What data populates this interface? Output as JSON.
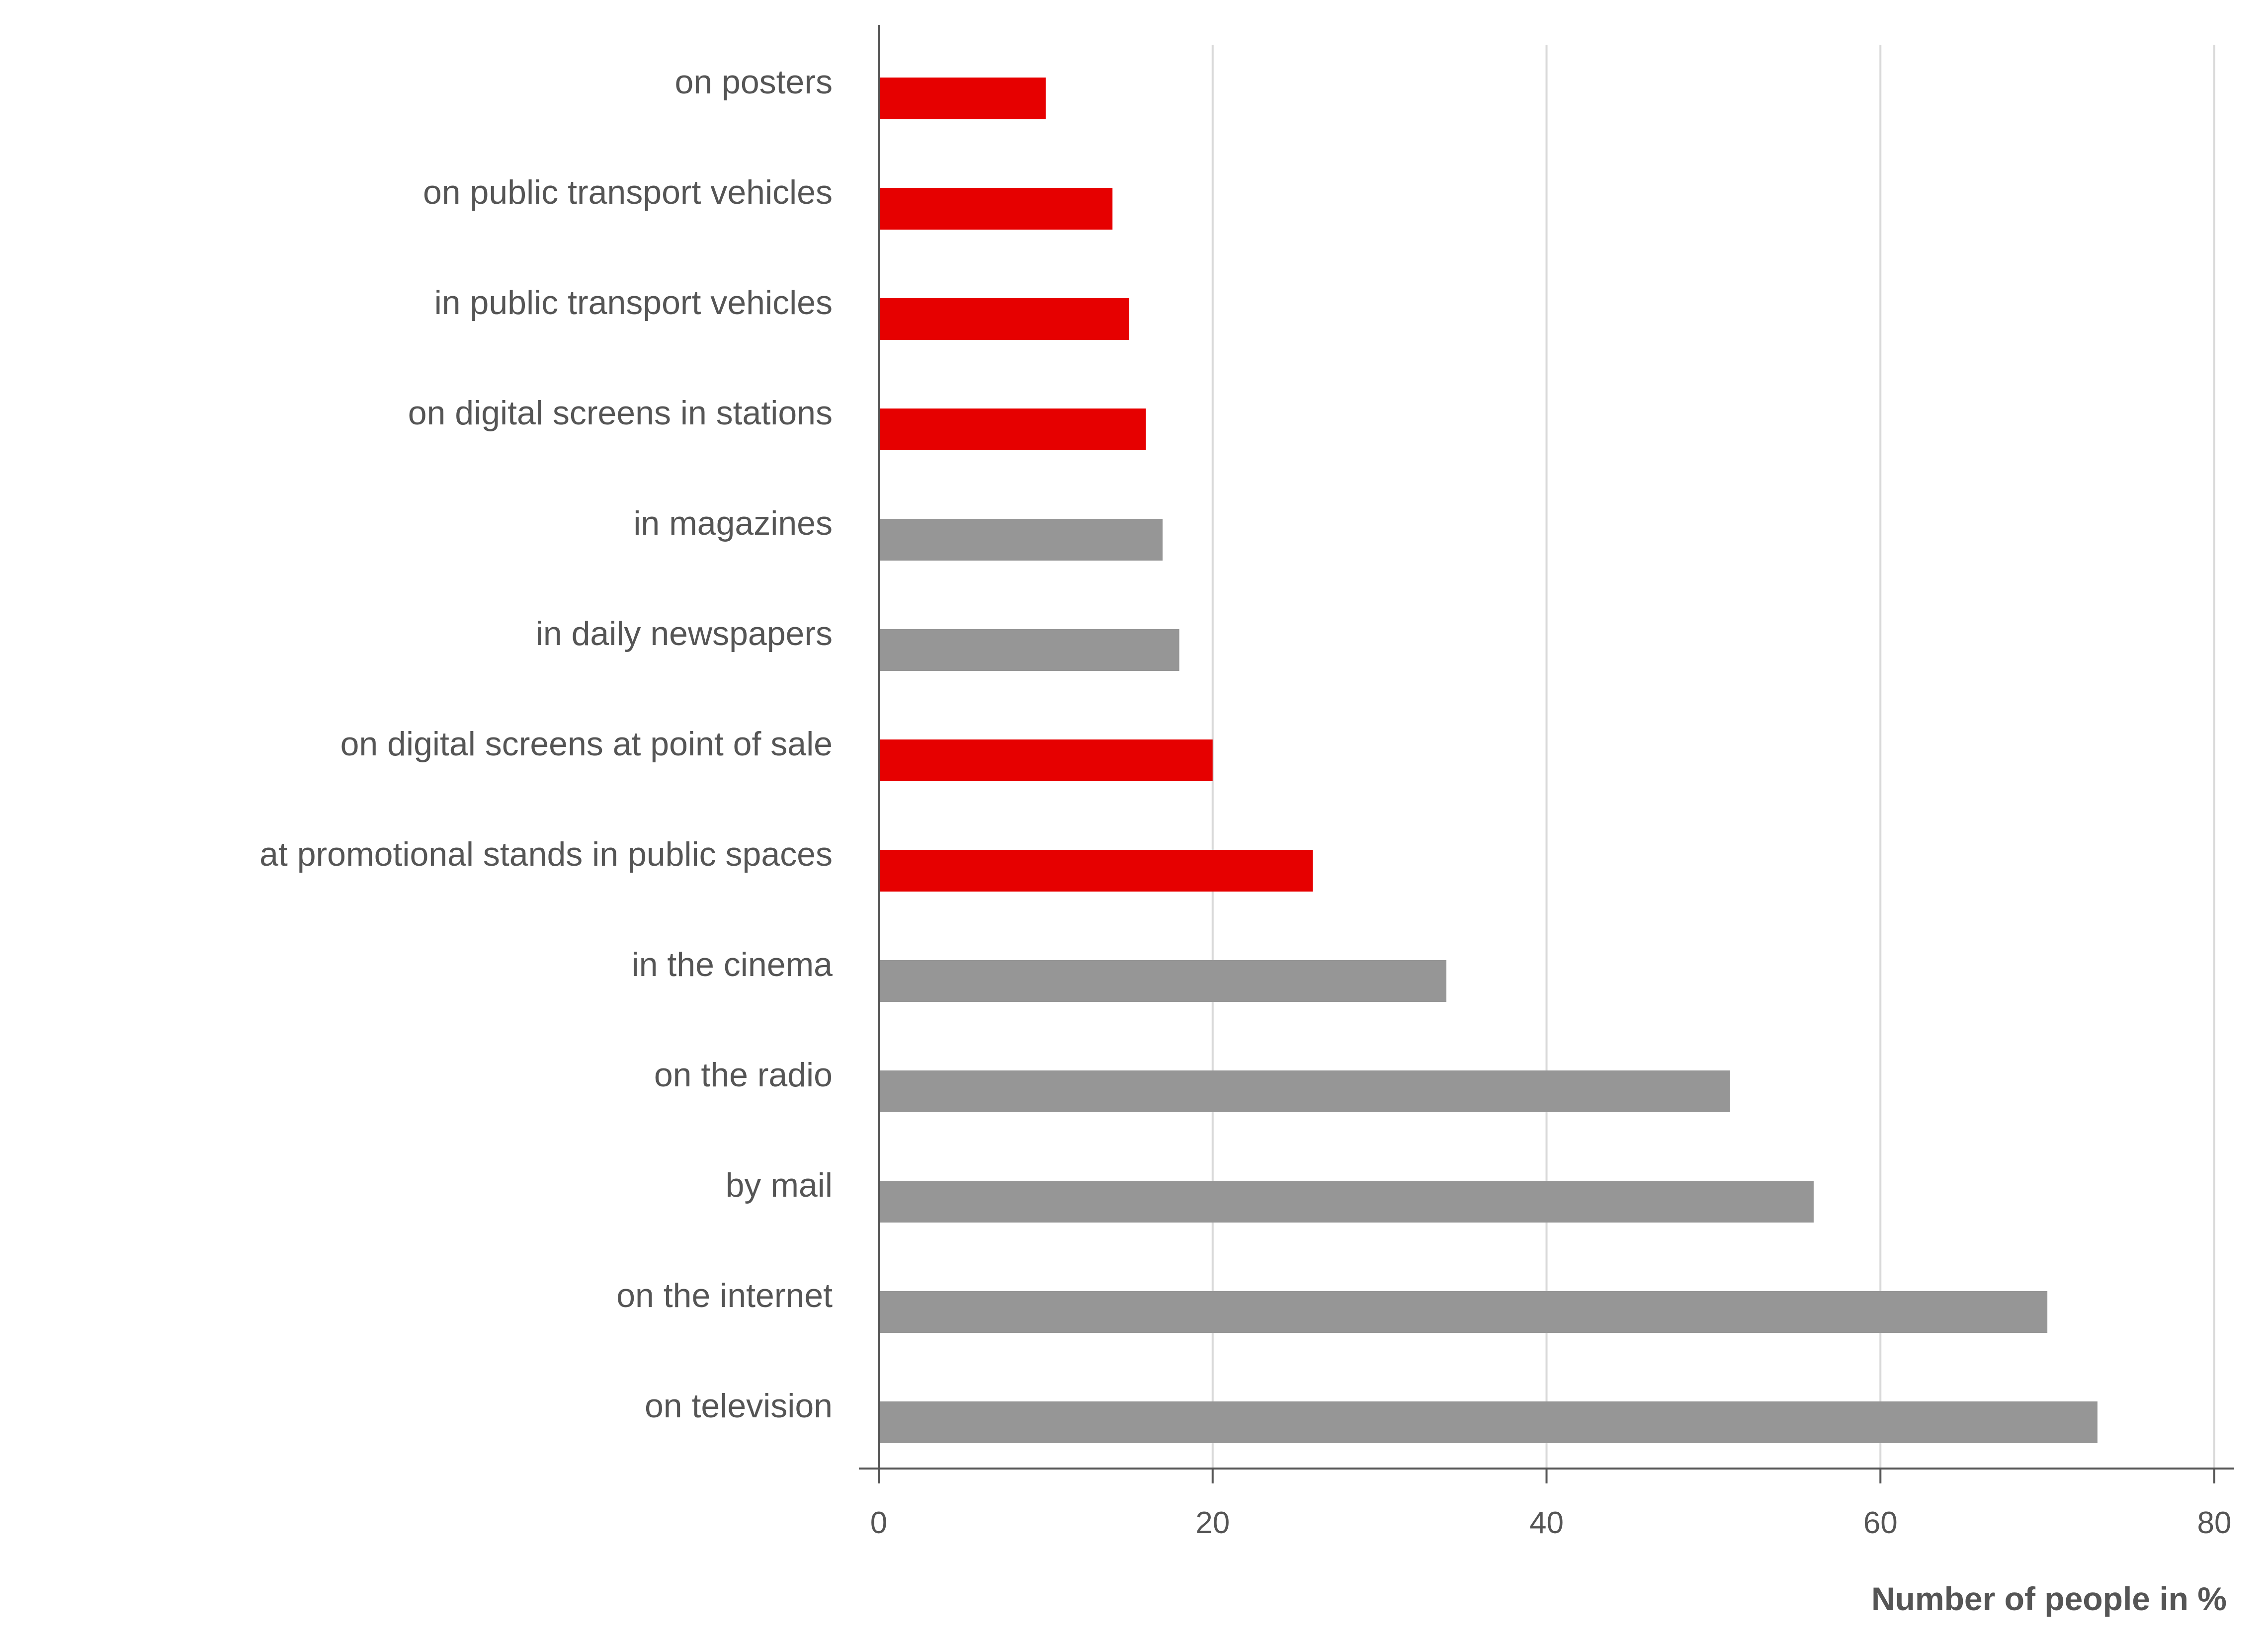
{
  "chart_data": {
    "type": "bar",
    "orientation": "horizontal",
    "categories": [
      "on posters",
      "on public transport vehicles",
      "in public transport vehicles",
      "on digital screens in stations",
      "in magazines",
      "in daily newspapers",
      "on digital screens at point of sale",
      "at promotional stands in public spaces",
      "in the cinema",
      "on the radio",
      "by mail",
      "on the internet",
      "on television"
    ],
    "values": [
      10,
      14,
      15,
      16,
      17,
      18,
      20,
      26,
      34,
      51,
      56,
      70,
      73
    ],
    "highlighted": [
      true,
      true,
      true,
      true,
      false,
      false,
      true,
      true,
      false,
      false,
      false,
      false,
      false
    ],
    "colors": {
      "highlight": "#e60000",
      "default": "#969696",
      "grid": "#d9d9d9",
      "axis": "#555555"
    },
    "xticks": [
      "0",
      "20",
      "40",
      "60",
      "80"
    ],
    "xtick_values": [
      0,
      20,
      40,
      60,
      80
    ],
    "xlim": [
      0,
      80
    ],
    "xlabel": "Number of people in %",
    "ylabel": "",
    "title": "",
    "grid": "vertical",
    "legend": "none"
  }
}
